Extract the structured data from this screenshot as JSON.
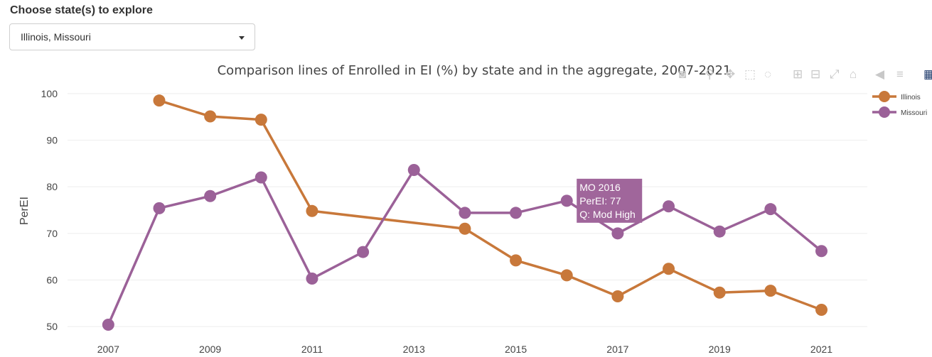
{
  "picker": {
    "label": "Choose state(s) to explore",
    "selected": "Illinois, Missouri"
  },
  "modebar": {
    "icons": [
      "camera-icon",
      "zoom-icon",
      "pan-icon",
      "box-select-icon",
      "lasso-icon",
      "zoom-in-icon",
      "zoom-out-icon",
      "autoscale-icon",
      "home-icon",
      "hover-closest-icon",
      "hover-compare-icon",
      "plotly-logo-icon"
    ]
  },
  "tooltip": {
    "lines": [
      "MO 2016",
      "PerEI: 77",
      "Q: Mod High"
    ],
    "color": "#a0669b"
  },
  "chart_data": {
    "type": "line",
    "title": "Comparison lines of Enrolled in EI (%) by state and in the aggregate, 2007-2021",
    "xlabel": "",
    "ylabel": "PerEI",
    "xlim": [
      2006.2,
      2021.9
    ],
    "ylim": [
      48.5,
      101.8
    ],
    "xticks": [
      2007,
      2009,
      2011,
      2013,
      2015,
      2017,
      2019,
      2021
    ],
    "yticks": [
      50,
      60,
      70,
      80,
      90,
      100
    ],
    "grid": true,
    "legend_position": "top-right",
    "series": [
      {
        "name": "Illinois",
        "color": "#c8783a",
        "x": [
          2008,
          2009,
          2010,
          2011,
          2014,
          2015,
          2016,
          2017,
          2018,
          2019,
          2020,
          2021
        ],
        "y": [
          98.5,
          95.1,
          94.4,
          74.8,
          71.0,
          64.2,
          61.0,
          56.5,
          62.4,
          57.3,
          57.7,
          53.6
        ]
      },
      {
        "name": "Missouri",
        "color": "#9b6198",
        "x": [
          2007,
          2008,
          2009,
          2010,
          2011,
          2012,
          2013,
          2014,
          2015,
          2016,
          2017,
          2018,
          2019,
          2020,
          2021
        ],
        "y": [
          50.4,
          75.4,
          78.0,
          82.0,
          60.3,
          66.0,
          83.6,
          74.4,
          74.4,
          77.0,
          70.0,
          75.8,
          70.4,
          75.2,
          66.2
        ]
      }
    ]
  }
}
